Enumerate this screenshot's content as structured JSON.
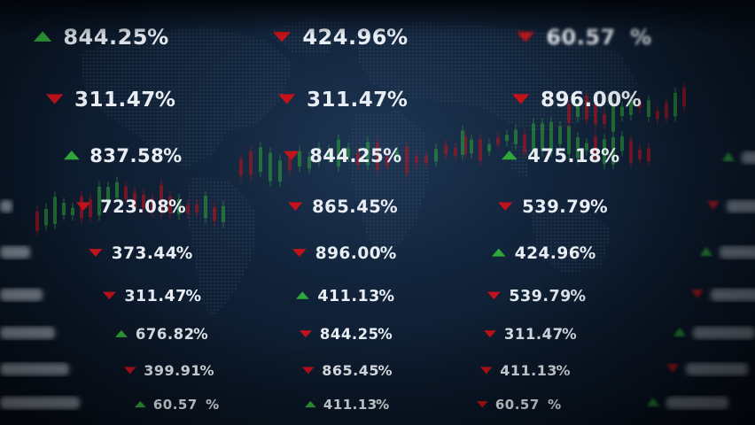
{
  "colors": {
    "up": "#2fa83a",
    "down": "#c4121a",
    "text": "#e8eef4"
  },
  "rows": [
    {
      "cells": [
        {
          "value": "844.25",
          "unit": "%",
          "trend": "up"
        },
        {
          "value": "424.96",
          "unit": "%",
          "trend": "down"
        },
        {
          "value": "60.57",
          "unit": "%",
          "trend": "down"
        }
      ]
    },
    {
      "cells": [
        {
          "value": "311.47",
          "unit": "%",
          "trend": "down"
        },
        {
          "value": "311.47",
          "unit": "%",
          "trend": "down"
        },
        {
          "value": "896.00",
          "unit": "%",
          "trend": "down"
        }
      ]
    },
    {
      "cells": [
        {
          "value": "837.58",
          "unit": "%",
          "trend": "up"
        },
        {
          "value": "844.25",
          "unit": "%",
          "trend": "down"
        },
        {
          "value": "475.18",
          "unit": "%",
          "trend": "up"
        }
      ]
    },
    {
      "cells": [
        {
          "value": "723.08",
          "unit": "%",
          "trend": "down"
        },
        {
          "value": "865.45",
          "unit": "%",
          "trend": "down"
        },
        {
          "value": "539.79",
          "unit": "%",
          "trend": "down"
        }
      ]
    },
    {
      "cells": [
        {
          "value": "373.44",
          "unit": "%",
          "trend": "down"
        },
        {
          "value": "896.00",
          "unit": "%",
          "trend": "down"
        },
        {
          "value": "424.96",
          "unit": "%",
          "trend": "up"
        }
      ]
    },
    {
      "cells": [
        {
          "value": "311.47",
          "unit": "%",
          "trend": "down"
        },
        {
          "value": "411.13",
          "unit": "%",
          "trend": "up"
        },
        {
          "value": "539.79",
          "unit": "%",
          "trend": "down"
        }
      ]
    },
    {
      "cells": [
        {
          "value": "676.82",
          "unit": "%",
          "trend": "up"
        },
        {
          "value": "844.25",
          "unit": "%",
          "trend": "down"
        },
        {
          "value": "311.47",
          "unit": "%",
          "trend": "down"
        }
      ]
    },
    {
      "cells": [
        {
          "value": "399.91",
          "unit": "%",
          "trend": "down"
        },
        {
          "value": "865.45",
          "unit": "%",
          "trend": "down"
        },
        {
          "value": "411.13",
          "unit": "%",
          "trend": "down"
        }
      ]
    },
    {
      "cells": [
        {
          "value": "60.57",
          "unit": "%",
          "trend": "up"
        },
        {
          "value": "411.13",
          "unit": "%",
          "trend": "up"
        },
        {
          "value": "60.57",
          "unit": "%",
          "trend": "down"
        }
      ]
    }
  ]
}
